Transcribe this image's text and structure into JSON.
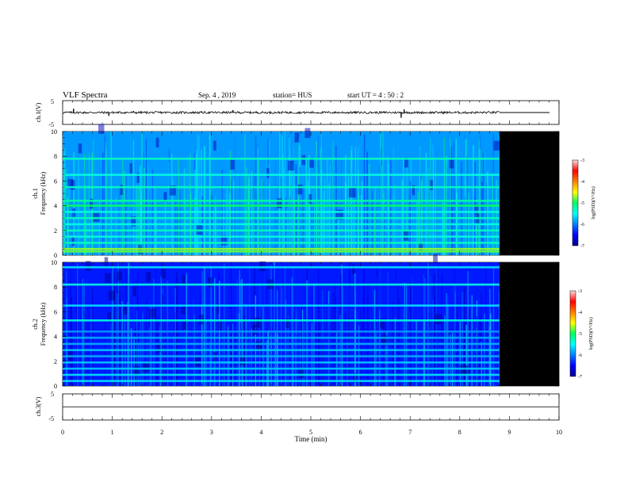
{
  "header": {
    "title": "VLF Spectra",
    "date": "Sep. 4  , 2019",
    "station": "station= HUS",
    "start": "start  UT =   4 : 50 : 2"
  },
  "chart_data": [
    {
      "type": "line",
      "name": "waveform-ch1",
      "ylabel": "ch.1(V)",
      "ylim": [
        -5,
        5
      ],
      "ytick_labels": [
        "5",
        "-5"
      ],
      "xlim": [
        0,
        10
      ],
      "data_end_min": 8.8,
      "baseline": 0,
      "spikes": [
        {
          "x": 0.22,
          "y": 1.6
        },
        {
          "x": 0.93,
          "y": -1.4
        },
        {
          "x": 1.43,
          "y": 0.6
        },
        {
          "x": 3.43,
          "y": 1.0
        },
        {
          "x": 6.82,
          "y": -2.2
        },
        {
          "x": 6.88,
          "y": 1.3
        }
      ]
    },
    {
      "type": "heatmap",
      "name": "spectrogram-ch1",
      "ylabel": "ch.1",
      "ylabel2": "Frequency (kHz)",
      "ylim": [
        0,
        10
      ],
      "ytick_labels": [
        "0",
        "2",
        "4",
        "6",
        "8",
        "10"
      ],
      "xlim": [
        0,
        10
      ],
      "data_end_min": 8.8,
      "background_level": -5.9,
      "band_levels": [
        {
          "f": 0.3,
          "level": -4.8
        },
        {
          "f": 0.5,
          "level": -4.7
        },
        {
          "f": 1.0,
          "level": -5.3
        },
        {
          "f": 1.5,
          "level": -5.4
        },
        {
          "f": 2.0,
          "level": -5.3
        },
        {
          "f": 2.5,
          "level": -5.4
        },
        {
          "f": 3.0,
          "level": -5.3
        },
        {
          "f": 3.5,
          "level": -5.4
        },
        {
          "f": 4.0,
          "level": -5.0
        },
        {
          "f": 4.4,
          "level": -5.2
        },
        {
          "f": 5.5,
          "level": -5.3
        },
        {
          "f": 6.5,
          "level": -5.4
        },
        {
          "f": 7.8,
          "level": -5.3
        }
      ],
      "colorbar": {
        "label": "log(PSD)(V²/Hz)",
        "ticks": [
          "-3",
          "-4",
          "-5",
          "-6",
          "-7"
        ],
        "range": [
          -7,
          -3
        ]
      }
    },
    {
      "type": "heatmap",
      "name": "spectrogram-ch2",
      "ylabel": "ch.2",
      "ylabel2": "Frequency (kHz)",
      "ylim": [
        0,
        10
      ],
      "ytick_labels": [
        "0",
        "2",
        "4",
        "6",
        "8",
        "10"
      ],
      "xlim": [
        0,
        10
      ],
      "data_end_min": 8.8,
      "background_level": -6.4,
      "band_levels": [
        {
          "f": 0.4,
          "level": -5.6
        },
        {
          "f": 0.9,
          "level": -5.6
        },
        {
          "f": 1.4,
          "level": -5.7
        },
        {
          "f": 1.9,
          "level": -5.7
        },
        {
          "f": 2.4,
          "level": -5.8
        },
        {
          "f": 2.9,
          "level": -5.7
        },
        {
          "f": 3.4,
          "level": -5.8
        },
        {
          "f": 3.9,
          "level": -5.8
        },
        {
          "f": 4.4,
          "level": -5.9
        },
        {
          "f": 5.3,
          "level": -5.4
        },
        {
          "f": 6.5,
          "level": -5.6
        },
        {
          "f": 8.2,
          "level": -5.4
        },
        {
          "f": 9.6,
          "level": -5.6
        }
      ],
      "colorbar": {
        "label": "log(PSD)(V²/Hz)",
        "ticks": [
          "-3",
          "-4",
          "-5",
          "-6",
          "-7"
        ],
        "range": [
          -7,
          -3
        ]
      }
    },
    {
      "type": "line",
      "name": "waveform-ch3",
      "ylabel": "ch.3(V)",
      "ylim": [
        -5,
        5
      ],
      "ytick_labels": [
        "5",
        "-5"
      ],
      "xlim": [
        0,
        10
      ],
      "baseline": 0,
      "xlabel": "Time  (min)",
      "xtick_labels": [
        "0",
        "1",
        "2",
        "3",
        "4",
        "5",
        "6",
        "7",
        "8",
        "9",
        "10"
      ]
    }
  ]
}
